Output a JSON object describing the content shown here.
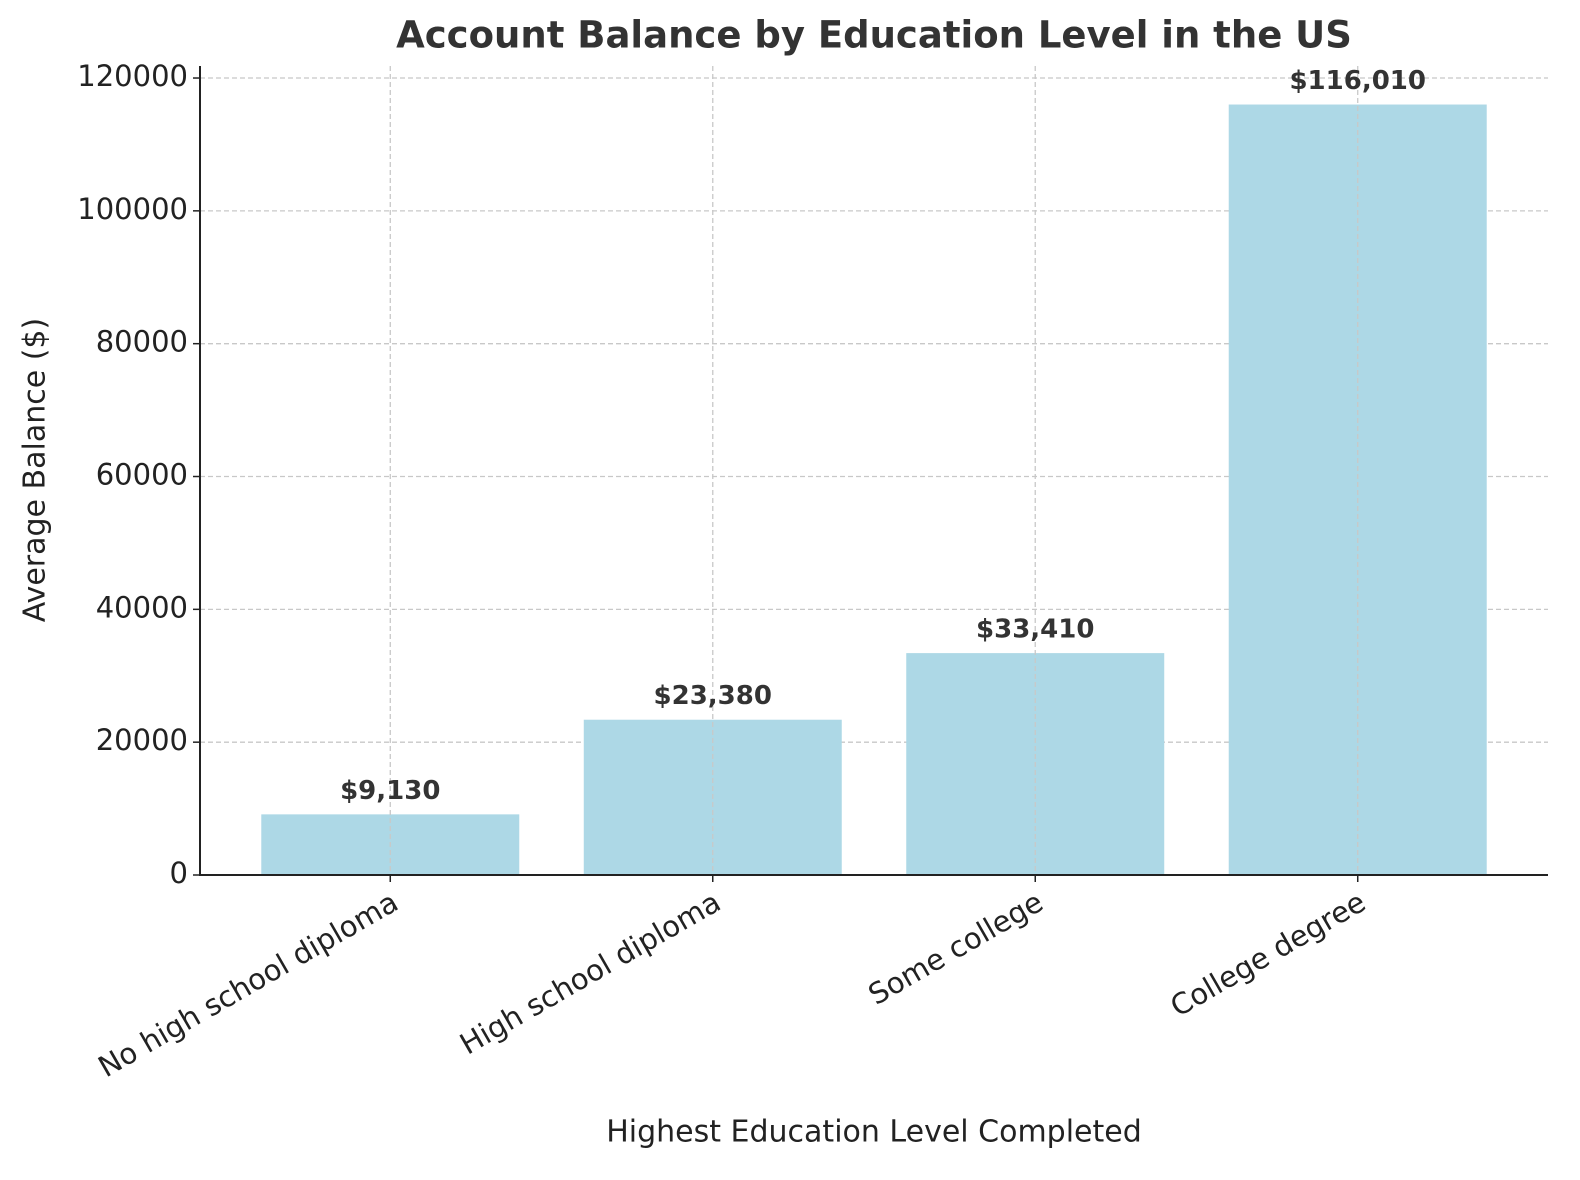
{
  "chart_data": {
    "type": "bar",
    "title": "Account Balance by Education Level in the US",
    "x_label": "Highest Education Level Completed",
    "y_label": "Average Balance ($)",
    "categories": [
      "No high school diploma",
      "High school diploma",
      "Some college",
      "College degree"
    ],
    "values": [
      9130,
      23380,
      33410,
      116010
    ],
    "value_labels": [
      "$9,130",
      "$23,380",
      "$33,410",
      "$116,010"
    ],
    "color": "#add8e6",
    "ylim": [
      0,
      121810
    ],
    "yticks": [
      0,
      20000,
      40000,
      60000,
      80000,
      100000,
      120000
    ],
    "grid": true
  }
}
